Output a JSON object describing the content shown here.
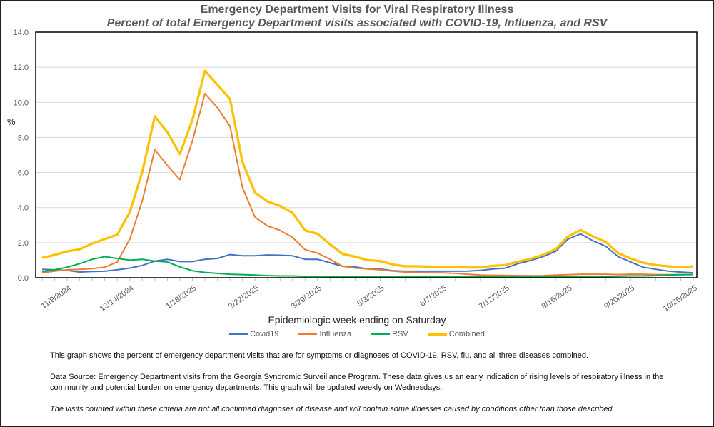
{
  "chart_data": {
    "type": "line",
    "title": "Emergency Department Visits for Viral Respiratory Illness",
    "subtitle": "Percent of total Emergency Department visits associated with COVID-19, Influenza, and RSV",
    "xlabel": "Epidemiologic week ending on Saturday",
    "ylabel": "%",
    "ylim": [
      0,
      14
    ],
    "yticks": [
      "0.0",
      "2.0",
      "4.0",
      "6.0",
      "8.0",
      "10.0",
      "12.0",
      "14.0"
    ],
    "xtick_labels": [
      "11/9/2024",
      "12/14/2024",
      "1/18/2025",
      "2/22/2025",
      "3/29/2025",
      "5/3/2025",
      "6/7/2025",
      "7/12/2025",
      "8/16/2025",
      "9/20/2025",
      "10/25/2025"
    ],
    "x_first_week": "10/26/2024",
    "x_last_week": "10/25/2025",
    "grid": "horizontal",
    "legend_position": "bottom",
    "series": [
      {
        "name": "Covid19",
        "color": "#4472C4",
        "values": [
          0.48,
          0.45,
          0.42,
          0.32,
          0.36,
          0.37,
          0.45,
          0.55,
          0.7,
          0.95,
          1.05,
          0.92,
          0.92,
          1.05,
          1.1,
          1.32,
          1.25,
          1.25,
          1.3,
          1.28,
          1.25,
          1.05,
          1.05,
          0.85,
          0.65,
          0.62,
          0.5,
          0.5,
          0.4,
          0.37,
          0.37,
          0.37,
          0.37,
          0.37,
          0.38,
          0.42,
          0.5,
          0.55,
          0.8,
          0.98,
          1.2,
          1.5,
          2.2,
          2.5,
          2.1,
          1.8,
          1.2,
          0.9,
          0.6,
          0.48,
          0.38,
          0.32,
          0.28
        ]
      },
      {
        "name": "Influenza",
        "color": "#ED7D31",
        "values": [
          0.28,
          0.38,
          0.45,
          0.48,
          0.52,
          0.6,
          0.9,
          2.2,
          4.4,
          7.3,
          6.4,
          5.6,
          7.8,
          10.5,
          9.7,
          8.65,
          5.15,
          3.45,
          2.95,
          2.7,
          2.3,
          1.6,
          1.4,
          1.05,
          0.65,
          0.55,
          0.5,
          0.45,
          0.38,
          0.32,
          0.3,
          0.28,
          0.28,
          0.25,
          0.2,
          0.15,
          0.14,
          0.13,
          0.12,
          0.11,
          0.12,
          0.15,
          0.17,
          0.2,
          0.2,
          0.2,
          0.18,
          0.2,
          0.2,
          0.18,
          0.17,
          0.17,
          0.2
        ]
      },
      {
        "name": "RSV",
        "color": "#00B050",
        "values": [
          0.35,
          0.45,
          0.6,
          0.8,
          1.05,
          1.2,
          1.1,
          1.0,
          1.05,
          0.95,
          0.9,
          0.62,
          0.4,
          0.3,
          0.25,
          0.2,
          0.18,
          0.15,
          0.12,
          0.1,
          0.1,
          0.07,
          0.08,
          0.06,
          0.06,
          0.05,
          0.05,
          0.05,
          0.04,
          0.04,
          0.04,
          0.04,
          0.04,
          0.04,
          0.04,
          0.04,
          0.04,
          0.04,
          0.04,
          0.04,
          0.04,
          0.04,
          0.05,
          0.05,
          0.05,
          0.06,
          0.08,
          0.1,
          0.1,
          0.12,
          0.15,
          0.17,
          0.18
        ]
      },
      {
        "name": "Combined",
        "color": "#FFC000",
        "values": [
          1.13,
          1.3,
          1.5,
          1.62,
          1.95,
          2.2,
          2.45,
          3.75,
          6.05,
          9.2,
          8.3,
          7.05,
          9.0,
          11.8,
          11.0,
          10.2,
          6.6,
          4.85,
          4.35,
          4.1,
          3.7,
          2.7,
          2.5,
          1.9,
          1.35,
          1.2,
          1.0,
          0.95,
          0.75,
          0.65,
          0.65,
          0.63,
          0.62,
          0.6,
          0.58,
          0.58,
          0.68,
          0.72,
          0.92,
          1.08,
          1.3,
          1.62,
          2.35,
          2.72,
          2.35,
          2.05,
          1.4,
          1.1,
          0.85,
          0.72,
          0.65,
          0.6,
          0.65
        ]
      }
    ]
  },
  "notes": {
    "p1": "This graph shows the percent of emergency department visits that are for symptoms or diagnoses of COVID-19, RSV, flu, and all three diseases combined.",
    "p2": "Data Source: Emergency Department visits from the Georgia Syndromic Surveillance Program. These data gives us an early indication of rising levels of respiratory illness in the community and potential burden on emergency departments. This graph will be updated weekly on Wednesdays.",
    "p3": "The visits counted within these criteria are not all confirmed diagnoses of disease and will contain some illnesses caused by conditions other than those described."
  }
}
